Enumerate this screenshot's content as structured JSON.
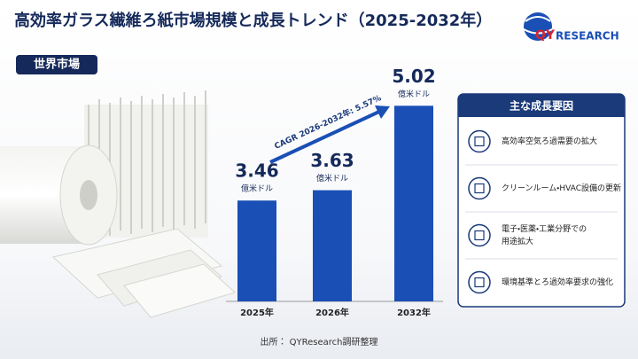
{
  "header": {
    "title": "高効率ガラス繊維ろ紙市場規模と成長トレンド（2025-2032年）",
    "region": "世界市場"
  },
  "logo": {
    "mark": "QY",
    "word": "RESEARCH"
  },
  "chart_data": {
    "type": "bar",
    "categories": [
      "2025年",
      "2026年",
      "2032年"
    ],
    "values": [
      3.46,
      3.63,
      5.02
    ],
    "unit": "億米ドル",
    "color": "#1a4fb5",
    "ylim": [
      1.8,
      5.2
    ],
    "annotation": "CAGR 2026-2032年: 5.57%"
  },
  "panel": {
    "title": "主な成長要因",
    "items": [
      [
        "高効率空気ろ過需要の拡大"
      ],
      [
        "クリーンルーム・HVAC設備の更新"
      ],
      [
        "電子・医薬・工業分野での",
        "用途拡大"
      ],
      [
        "環境基準とろ過効率要求の強化"
      ]
    ]
  },
  "source": "出所： QYResearch調研整理"
}
